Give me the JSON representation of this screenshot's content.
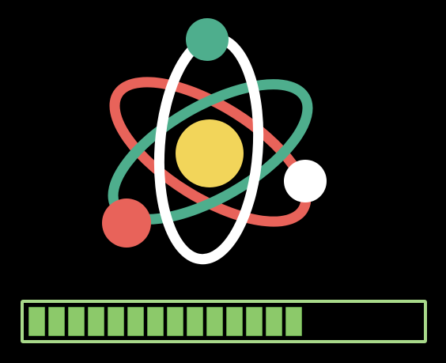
{
  "loader": {
    "icon": "atom-icon",
    "progress_fraction": 0.69,
    "segments_filled": 14,
    "colors": {
      "background": "#000000",
      "nucleus": "#f2d55a",
      "orbit_red": "#e8635a",
      "orbit_green": "#4eae8d",
      "orbit_white": "#ffffff",
      "electron_green": "#4eae8d",
      "electron_red": "#e8635a",
      "electron_white": "#ffffff",
      "bar_frame": "#a8d98a",
      "bar_fill": "#8cc96a"
    }
  }
}
